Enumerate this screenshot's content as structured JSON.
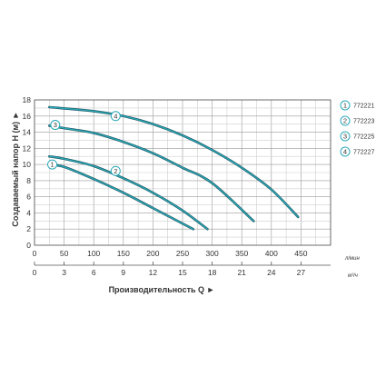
{
  "chart_data": {
    "type": "line",
    "ylabel": "Создаваемый напор H (м) ►",
    "xlabel": "Производительность Q ►",
    "x_unit_top": "л/мин",
    "x_unit_bottom": "м³/ч",
    "xlim": [
      0,
      500
    ],
    "ylim": [
      0,
      18
    ],
    "yticks": [
      "0",
      "2",
      "4",
      "6",
      "8",
      "10",
      "12",
      "14",
      "16",
      "18"
    ],
    "xticks_top": [
      "0",
      "50",
      "100",
      "150",
      "200",
      "250",
      "300",
      "350",
      "400",
      "450"
    ],
    "xticks_bottom": [
      "0",
      "3",
      "6",
      "9",
      "12",
      "15",
      "18",
      "21",
      "24",
      "27"
    ],
    "grid": true,
    "legend": "right",
    "series_color": "#2aa8b8",
    "series": [
      {
        "marker": "1",
        "name": "772221",
        "x": [
          25,
          50,
          100,
          150,
          200,
          268
        ],
        "y": [
          10.0,
          9.7,
          8.2,
          6.5,
          4.6,
          2.0
        ]
      },
      {
        "marker": "2",
        "name": "772223",
        "x": [
          25,
          50,
          100,
          150,
          200,
          250,
          292
        ],
        "y": [
          11.0,
          10.7,
          9.8,
          8.3,
          6.5,
          4.3,
          2.0
        ]
      },
      {
        "marker": "3",
        "name": "772225",
        "x": [
          25,
          50,
          100,
          150,
          200,
          250,
          300,
          370
        ],
        "y": [
          14.8,
          14.5,
          13.9,
          12.8,
          11.4,
          9.6,
          7.7,
          3.0
        ]
      },
      {
        "marker": "4",
        "name": "772227",
        "x": [
          25,
          100,
          150,
          200,
          250,
          300,
          350,
          400,
          445
        ],
        "y": [
          17.1,
          16.6,
          16.0,
          15.0,
          13.6,
          11.8,
          9.6,
          6.9,
          3.5
        ]
      }
    ],
    "curve_markers": [
      {
        "label": "1",
        "x": 30,
        "y": 10.0
      },
      {
        "label": "2",
        "x": 137,
        "y": 9.2
      },
      {
        "label": "3",
        "x": 35,
        "y": 14.9
      },
      {
        "label": "4",
        "x": 137,
        "y": 16.0
      }
    ]
  }
}
